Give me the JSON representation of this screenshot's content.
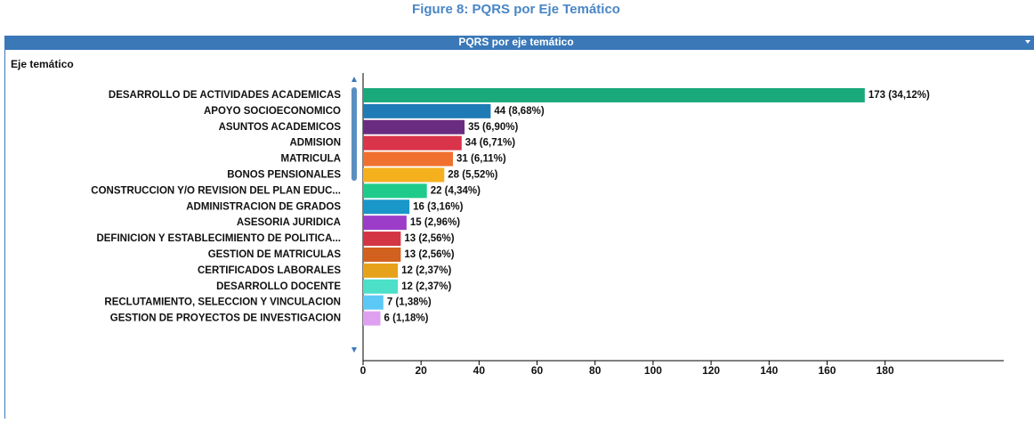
{
  "figure_caption": "Figure 8: PQRS por Eje Temático",
  "panel_title": "PQRS por eje temático",
  "chart_data": {
    "type": "hbar",
    "axis_label": "Eje temático",
    "categories": [
      "DESARROLLO DE ACTIVIDADES ACADEMICAS",
      "APOYO SOCIOECONOMICO",
      "ASUNTOS ACADEMICOS",
      "ADMISION",
      "MATRICULA",
      "BONOS PENSIONALES",
      "CONSTRUCCION Y/O REVISION DEL PLAN EDUC...",
      "ADMINISTRACION DE GRADOS",
      "ASESORIA JURIDICA",
      "DEFINICION Y ESTABLECIMIENTO DE POLITICA...",
      "GESTION DE MATRICULAS",
      "CERTIFICADOS LABORALES",
      "DESARROLLO DOCENTE",
      "RECLUTAMIENTO, SELECCION Y VINCULACION",
      "GESTION DE PROYECTOS DE INVESTIGACION"
    ],
    "values": [
      173,
      44,
      35,
      34,
      31,
      28,
      22,
      16,
      15,
      13,
      13,
      12,
      12,
      7,
      6
    ],
    "value_labels": [
      "173 (34,12%)",
      "44 (8,68%)",
      "35 (6,90%)",
      "34 (6,71%)",
      "31 (6,11%)",
      "28 (5,52%)",
      "22 (4,34%)",
      "16 (3,16%)",
      "15 (2,96%)",
      "13 (2,56%)",
      "13 (2,56%)",
      "12 (2,37%)",
      "12 (2,37%)",
      "7 (1,38%)",
      "6 (1,18%)"
    ],
    "colors": [
      "#1aa97a",
      "#1f7bb5",
      "#6a2c80",
      "#d9344a",
      "#f07030",
      "#f5b01e",
      "#1ecb8b",
      "#1a97c9",
      "#9b3dc9",
      "#d43545",
      "#d2601e",
      "#e6a21a",
      "#4de0c8",
      "#5cc8f5",
      "#e0a0f0"
    ],
    "xlim": [
      0,
      220
    ],
    "xticks": [
      0,
      20,
      40,
      60,
      80,
      100,
      120,
      140,
      160,
      180
    ]
  }
}
